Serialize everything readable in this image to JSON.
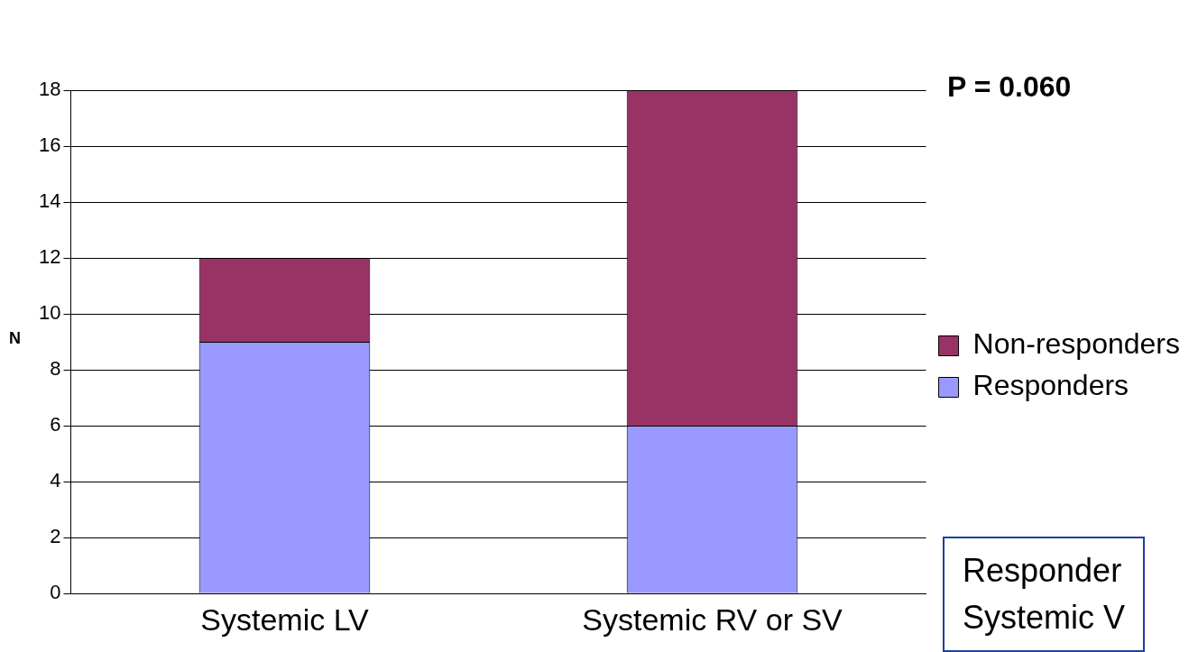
{
  "chart_data": {
    "type": "bar",
    "ylabel": "N",
    "categories": [
      "Systemic LV",
      "Systemic RV or SV"
    ],
    "stacked": true,
    "series": [
      {
        "name": "Responders",
        "color": "#9999ff",
        "values": [
          9,
          6
        ]
      },
      {
        "name": "Non-responders",
        "color": "#993366",
        "values": [
          3,
          12
        ]
      }
    ],
    "ylim": [
      0,
      18
    ],
    "yticks": [
      0,
      2,
      4,
      6,
      8,
      10,
      12,
      14,
      16,
      18
    ],
    "grid": "y",
    "legend": "right",
    "annotations": [
      "P = 0.060",
      "Responder",
      "Systemic V"
    ]
  }
}
